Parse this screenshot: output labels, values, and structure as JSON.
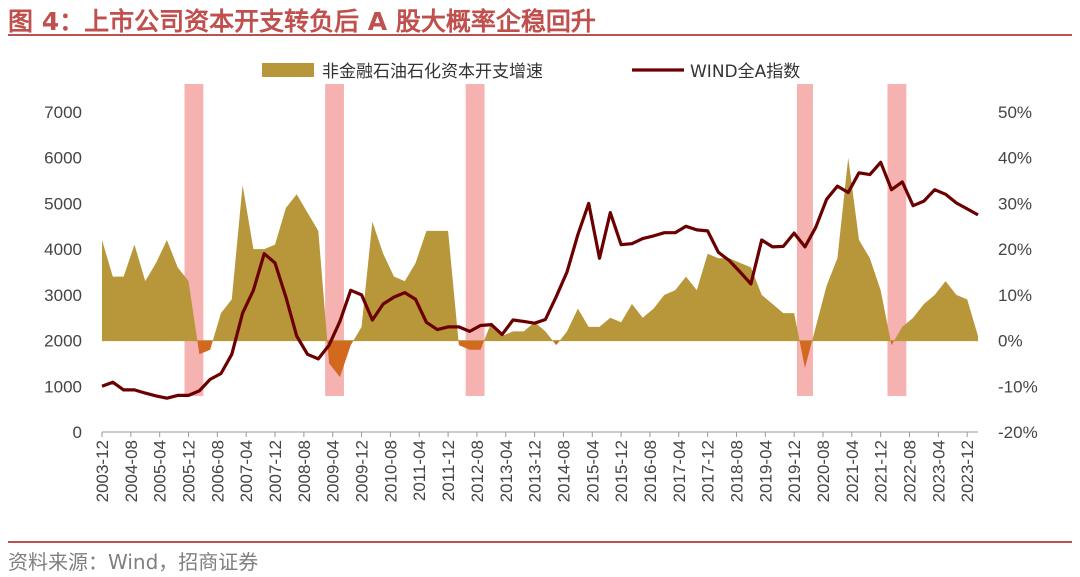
{
  "header": {
    "title": "图 4：上市公司资本开支转负后 A 股大概率企稳回升"
  },
  "footer": {
    "source": "资料来源：Wind，招商证券"
  },
  "colors": {
    "accent": "#c0504d",
    "area_fill": "#b8963a",
    "area_negative": "#d2691e",
    "line": "#6b0000",
    "highlight": "#f4a3a3"
  },
  "chart_data": {
    "type": "area",
    "x": [
      "2003-12",
      "2004-03",
      "2004-06",
      "2004-09",
      "2004-12",
      "2005-03",
      "2005-06",
      "2005-09",
      "2005-12",
      "2006-03",
      "2006-06",
      "2006-09",
      "2006-12",
      "2007-03",
      "2007-06",
      "2007-09",
      "2007-12",
      "2008-03",
      "2008-06",
      "2008-09",
      "2008-12",
      "2009-03",
      "2009-06",
      "2009-09",
      "2009-12",
      "2010-03",
      "2010-06",
      "2010-09",
      "2010-12",
      "2011-03",
      "2011-06",
      "2011-09",
      "2011-12",
      "2012-03",
      "2012-06",
      "2012-09",
      "2012-12",
      "2013-03",
      "2013-06",
      "2013-09",
      "2013-12",
      "2014-03",
      "2014-06",
      "2014-09",
      "2014-12",
      "2015-03",
      "2015-06",
      "2015-09",
      "2015-12",
      "2016-03",
      "2016-06",
      "2016-09",
      "2016-12",
      "2017-03",
      "2017-06",
      "2017-09",
      "2017-12",
      "2018-03",
      "2018-06",
      "2018-09",
      "2018-12",
      "2019-03",
      "2019-06",
      "2019-09",
      "2019-12",
      "2020-03",
      "2020-06",
      "2020-09",
      "2020-12",
      "2021-03",
      "2021-06",
      "2021-09",
      "2021-12",
      "2022-03",
      "2022-06",
      "2022-09",
      "2022-12",
      "2023-03",
      "2023-06",
      "2023-09",
      "2023-12",
      "2024-03"
    ],
    "x_tick_labels": [
      "2003-12",
      "2004-08",
      "2005-04",
      "2005-12",
      "2006-08",
      "2007-04",
      "2007-12",
      "2008-08",
      "2009-04",
      "2009-12",
      "2010-08",
      "2011-04",
      "2011-12",
      "2012-08",
      "2013-04",
      "2013-12",
      "2014-08",
      "2015-04",
      "2015-12",
      "2016-08",
      "2017-04",
      "2017-12",
      "2018-08",
      "2019-04",
      "2019-12",
      "2020-08",
      "2021-04",
      "2021-12",
      "2022-08",
      "2023-04",
      "2023-12"
    ],
    "series": [
      {
        "name": "非金融石油石化资本开支增速",
        "axis": "right",
        "kind": "area",
        "values": [
          22,
          14,
          14,
          21,
          13,
          17,
          22,
          16,
          13,
          -3,
          -2,
          6,
          9,
          34,
          20,
          20,
          21,
          29,
          32,
          28,
          24,
          -5,
          -8,
          -1,
          3,
          26,
          19,
          14,
          13,
          17,
          24,
          24,
          24,
          -1,
          -2,
          -2,
          4,
          1,
          2,
          2,
          4,
          2,
          -1,
          2,
          7,
          3,
          3,
          5,
          4,
          8,
          5,
          7,
          10,
          11,
          14,
          11,
          19,
          18,
          18,
          17,
          16,
          10,
          8,
          6,
          6,
          -6,
          3,
          12,
          18,
          40,
          22,
          18,
          11,
          -1,
          3,
          5,
          8,
          10,
          13,
          10,
          9,
          1
        ]
      },
      {
        "name": "WIND全A指数",
        "axis": "left",
        "kind": "line",
        "values": [
          1000,
          1090,
          920,
          920,
          850,
          790,
          740,
          800,
          800,
          900,
          1150,
          1280,
          1700,
          2600,
          3100,
          3900,
          3700,
          2950,
          2100,
          1700,
          1600,
          1900,
          2420,
          3100,
          3000,
          2450,
          2800,
          2950,
          3050,
          2900,
          2400,
          2240,
          2300,
          2300,
          2200,
          2330,
          2350,
          2130,
          2450,
          2420,
          2380,
          2460,
          2960,
          3500,
          4320,
          5000,
          3800,
          4800,
          4100,
          4120,
          4230,
          4290,
          4360,
          4360,
          4500,
          4420,
          4400,
          3930,
          3750,
          3500,
          3240,
          4200,
          4050,
          4060,
          4350,
          4050,
          4480,
          5090,
          5380,
          5240,
          5670,
          5630,
          5900,
          5300,
          5470,
          4950,
          5050,
          5300,
          5200,
          5010,
          4880,
          4750
        ]
      }
    ],
    "highlight_periods": [
      [
        "2005-12",
        "2006-03"
      ],
      [
        "2009-03",
        "2009-06"
      ],
      [
        "2012-06",
        "2012-09"
      ],
      [
        "2020-03",
        "2020-03"
      ],
      [
        "2022-03",
        "2022-06"
      ]
    ],
    "y_left": {
      "ylim": [
        0,
        7000
      ],
      "ticks": [
        "0",
        "1000",
        "2000",
        "3000",
        "4000",
        "5000",
        "6000",
        "7000"
      ]
    },
    "y_right": {
      "ylim": [
        -20,
        50
      ],
      "ticks": [
        "-20%",
        "-10%",
        "0%",
        "10%",
        "20%",
        "30%",
        "40%",
        "50%"
      ]
    },
    "legend": {
      "placement": "top-center"
    },
    "grid": false
  }
}
